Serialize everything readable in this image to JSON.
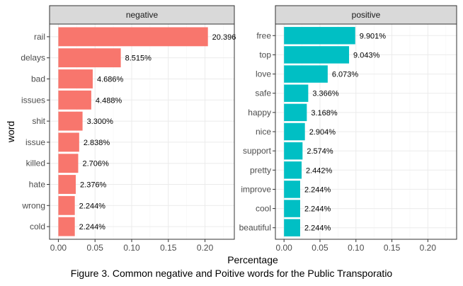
{
  "chart_data": [
    {
      "type": "bar",
      "orientation": "horizontal",
      "facet": "negative",
      "color": "#F8766D",
      "categories": [
        "rail",
        "delays",
        "bad",
        "issues",
        "shit",
        "issue",
        "killed",
        "hate",
        "wrong",
        "cold"
      ],
      "values": [
        0.20396,
        0.08515,
        0.04686,
        0.04488,
        0.033,
        0.02838,
        0.02706,
        0.02376,
        0.02244,
        0.02244
      ],
      "labels": [
        "20.396",
        "8.515%",
        "4.686%",
        "4.488%",
        "3.300%",
        "2.838%",
        "2.706%",
        "2.376%",
        "2.244%",
        "2.244%"
      ],
      "xlim": [
        -0.012,
        0.24
      ],
      "xticks": [
        "0.00",
        "0.05",
        "0.10",
        "0.15",
        "0.20"
      ],
      "ylabel": "word"
    },
    {
      "type": "bar",
      "orientation": "horizontal",
      "facet": "positive",
      "color": "#00BFC4",
      "categories": [
        "free",
        "top",
        "love",
        "safe",
        "happy",
        "nice",
        "support",
        "pretty",
        "improve",
        "cool",
        "beautiful"
      ],
      "values": [
        0.09901,
        0.09043,
        0.06073,
        0.03366,
        0.03168,
        0.02904,
        0.02574,
        0.02442,
        0.02244,
        0.02244,
        0.02244
      ],
      "labels": [
        "9.901%",
        "9.043%",
        "6.073%",
        "3.366%",
        "3.168%",
        "2.904%",
        "2.574%",
        "2.442%",
        "2.244%",
        "2.244%",
        "2.244%"
      ],
      "xlim": [
        -0.012,
        0.24
      ],
      "xticks": [
        "0.00",
        "0.05",
        "0.10",
        "0.15",
        "0.20"
      ]
    }
  ],
  "xlabel": "Percentage",
  "caption": "Figure 3. Common negative and Poitive words for the Public Transporatio",
  "grid": true,
  "theme": {
    "panel_border": "#333333",
    "strip_fill": "#D9D9D9",
    "grid_major": "#EBEBEB",
    "grid_minor": "#F5F5F5",
    "tick_text": "#4D4D4D"
  }
}
